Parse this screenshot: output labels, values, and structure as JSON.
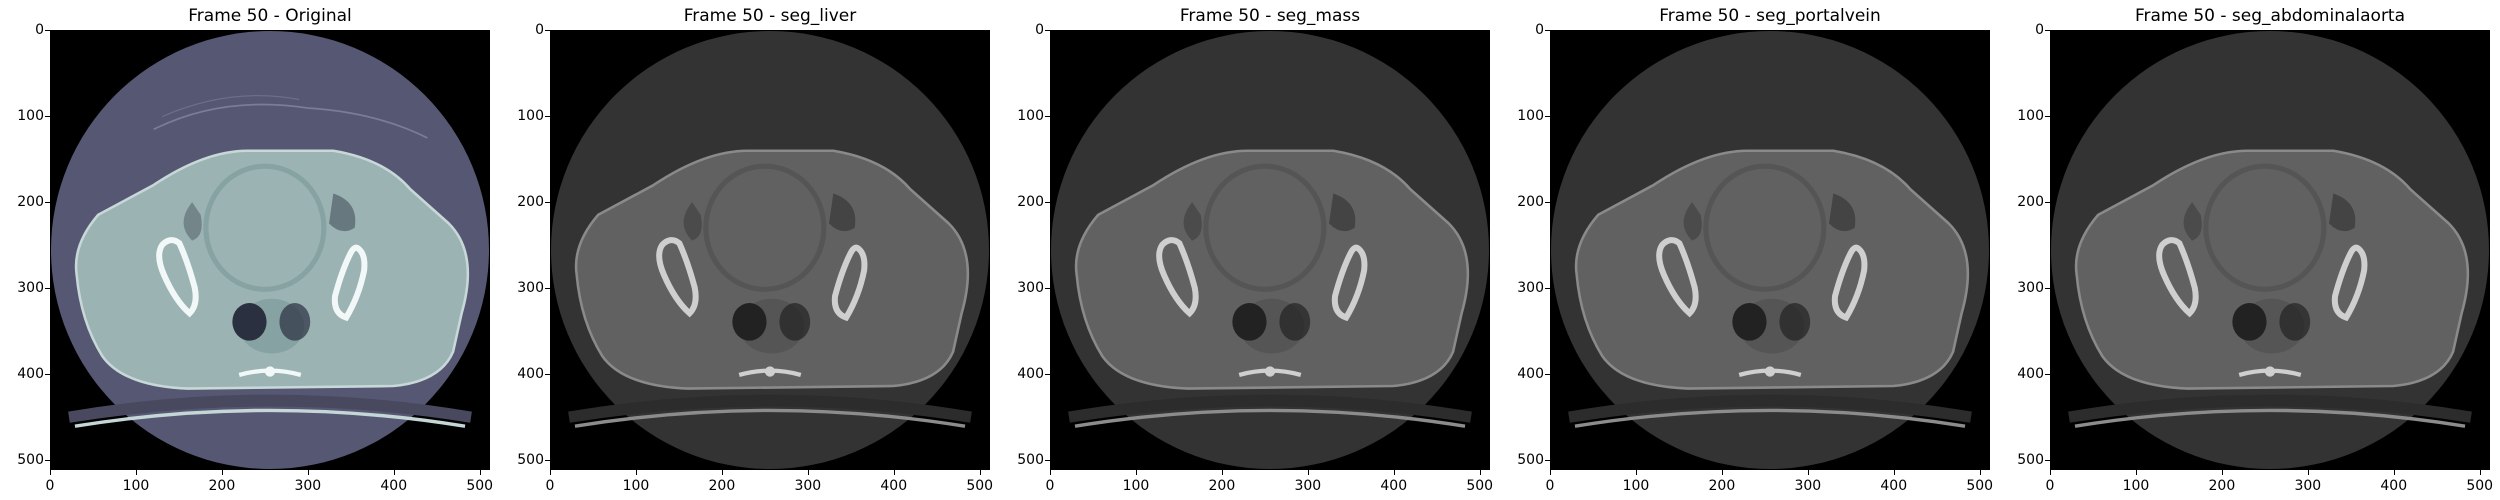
{
  "panels": [
    {
      "title": "Frame 50 - Original",
      "colormap": "bone"
    },
    {
      "title": "Frame 50 - seg_liver",
      "colormap": "gray"
    },
    {
      "title": "Frame 50 - seg_mass",
      "colormap": "gray"
    },
    {
      "title": "Frame 50 - seg_portalvein",
      "colormap": "gray"
    },
    {
      "title": "Frame 50 - seg_abdominalaorta",
      "colormap": "gray"
    }
  ],
  "axes": {
    "x_ticks": [
      "0",
      "100",
      "200",
      "300",
      "400",
      "500"
    ],
    "y_ticks": [
      "0",
      "100",
      "200",
      "300",
      "400",
      "500"
    ],
    "range": [
      0,
      512
    ]
  }
}
